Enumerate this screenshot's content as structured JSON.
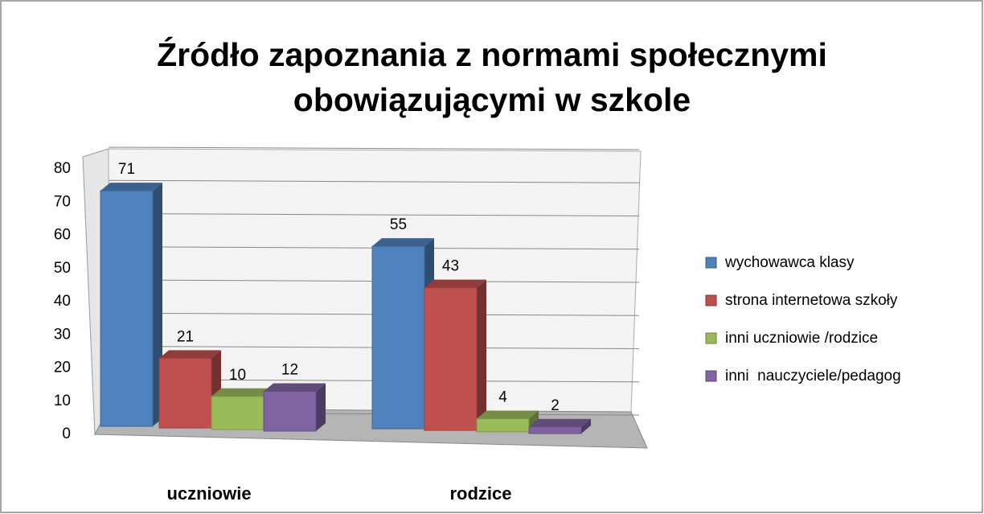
{
  "chart_data": {
    "type": "bar3d",
    "title": "Źródło zapoznania z normami społecznymi obowiązującymi w szkole",
    "categories": [
      "uczniowie",
      "rodzice"
    ],
    "series": [
      {
        "name": "wychowawca klasy",
        "color": "#4f81bd",
        "values": [
          71,
          55
        ]
      },
      {
        "name": "strona internetowa szkoły",
        "color": "#c0504d",
        "values": [
          21,
          43
        ]
      },
      {
        "name": "inni uczniowie /rodzice",
        "color": "#9bbb59",
        "values": [
          10,
          4
        ]
      },
      {
        "name": "inni  nauczyciele/pedagog",
        "color": "#8064a2",
        "values": [
          12,
          2
        ]
      }
    ],
    "ylim": [
      0,
      80
    ],
    "yticks": [
      0,
      10,
      20,
      30,
      40,
      50,
      60,
      70,
      80
    ],
    "grid": true,
    "legend": "right"
  }
}
